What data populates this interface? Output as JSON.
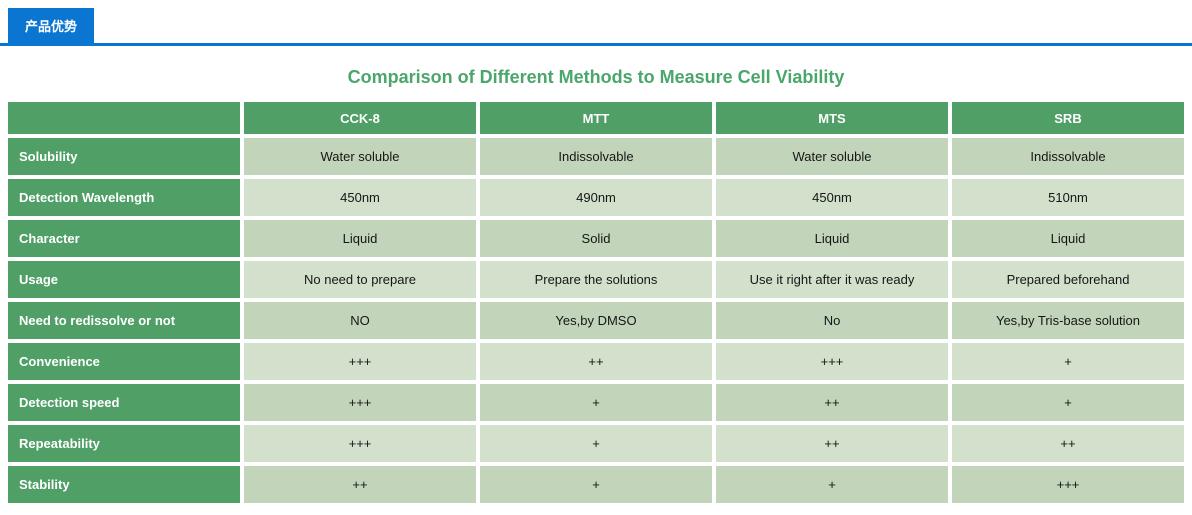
{
  "tab": {
    "label": "产品优势"
  },
  "title": "Comparison of Different Methods to Measure Cell Viability",
  "colors": {
    "tab_blue": "#0a76d1",
    "table_green": "#4f9f66",
    "title_green": "#4aa66a",
    "row_shade_dark": "#c2d5ba",
    "row_shade_light": "#d3e0cb"
  },
  "table": {
    "columns": [
      "",
      "CCK-8",
      "MTT",
      "MTS",
      "SRB"
    ],
    "rows": [
      {
        "label": "Solubility",
        "values": [
          "Water soluble",
          "Indissolvable",
          "Water soluble",
          "Indissolvable"
        ]
      },
      {
        "label": "Detection Wavelength",
        "values": [
          "450nm",
          "490nm",
          "450nm",
          "510nm"
        ]
      },
      {
        "label": "Character",
        "values": [
          "Liquid",
          "Solid",
          "Liquid",
          "Liquid"
        ]
      },
      {
        "label": "Usage",
        "values": [
          "No need to prepare",
          "Prepare the solutions",
          "Use it right after it was ready",
          "Prepared beforehand"
        ]
      },
      {
        "label": "Need to redissolve or not",
        "values": [
          "NO",
          "Yes,by DMSO",
          "No",
          "Yes,by Tris-base solution"
        ]
      },
      {
        "label": "Convenience",
        "values": [
          "+++",
          "++",
          "+++",
          "+"
        ]
      },
      {
        "label": "Detection speed",
        "values": [
          "+++",
          "+",
          "++",
          "+"
        ]
      },
      {
        "label": "Repeatability",
        "values": [
          "+++",
          "+",
          "++",
          "++"
        ]
      },
      {
        "label": "Stability",
        "values": [
          "++",
          "+",
          "+",
          "+++"
        ]
      }
    ]
  }
}
